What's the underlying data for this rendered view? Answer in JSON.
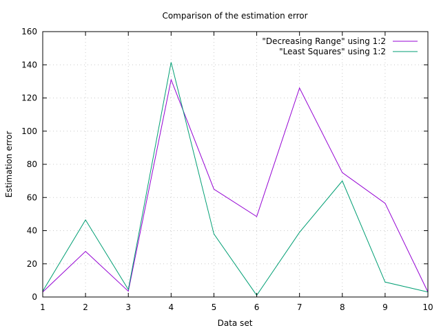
{
  "chart_data": {
    "type": "line",
    "title": "Comparison of the estimation error",
    "xlabel": "Data set",
    "ylabel": "Estimation error",
    "x": [
      1,
      2,
      3,
      4,
      5,
      6,
      7,
      8,
      9,
      10
    ],
    "xlim": [
      1,
      10
    ],
    "ylim": [
      0,
      160
    ],
    "xticks": [
      "1",
      "2",
      "3",
      "4",
      "5",
      "6",
      "7",
      "8",
      "9",
      "10"
    ],
    "yticks": [
      "0",
      "20",
      "40",
      "60",
      "80",
      "100",
      "120",
      "140",
      "160"
    ],
    "grid": true,
    "legend_position": "top-right",
    "series": [
      {
        "name": "\"Decreasing Range\" using 1:2",
        "color": "#9400d3",
        "values": [
          3,
          27.5,
          3.5,
          131,
          65,
          48.5,
          126,
          75,
          56.5,
          3
        ]
      },
      {
        "name": "\"Least Squares\" using 1:2",
        "color": "#009e73",
        "values": [
          3.5,
          46.5,
          4.5,
          141.5,
          38,
          1,
          39,
          70,
          9,
          3
        ]
      }
    ]
  }
}
